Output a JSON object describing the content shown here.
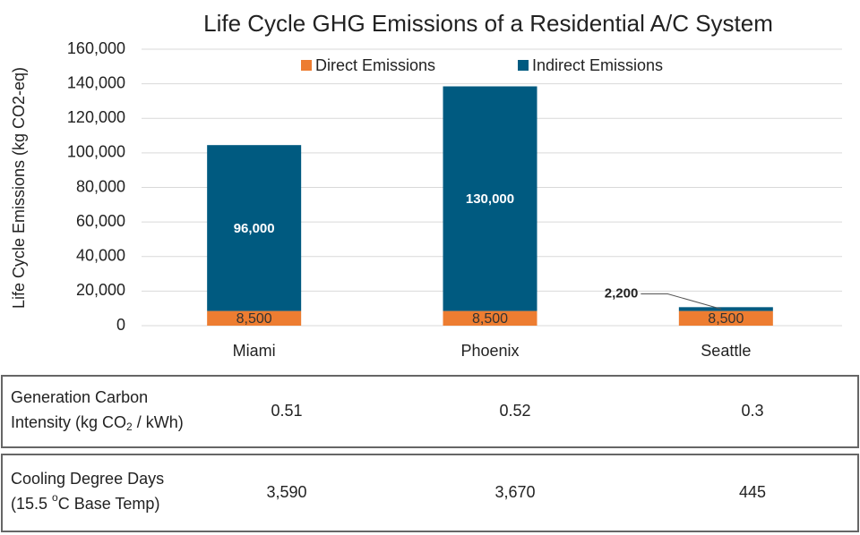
{
  "chart_data": {
    "type": "stacked_bar",
    "title": "Life Cycle GHG Emissions of a Residential A/C System",
    "ylabel": "Life Cycle Emissions  (kg CO2-eq)",
    "categories": [
      "Miami",
      "Phoenix",
      "Seattle"
    ],
    "series": [
      {
        "name": "Direct Emissions",
        "color": "#ed7d31",
        "values": [
          8500,
          8500,
          8500
        ],
        "value_labels": [
          "8,500",
          "8,500",
          "8,500"
        ]
      },
      {
        "name": "Indirect Emissions",
        "color": "#005a80",
        "values": [
          96000,
          130000,
          2200
        ],
        "value_labels": [
          "96,000",
          "130,000",
          "2,200"
        ]
      }
    ],
    "ylim": [
      0,
      160000
    ],
    "yticks": [
      0,
      {
        "value": 20000,
        "label": "20,000"
      },
      {
        "value": 40000,
        "label": "40,000"
      },
      {
        "value": 60000,
        "label": "60,000"
      },
      {
        "value": 80000,
        "label": "80,000"
      },
      {
        "value": 100000,
        "label": "100,000"
      },
      {
        "value": 120000,
        "label": "120,000"
      },
      {
        "value": 140000,
        "label": "140,000"
      },
      {
        "value": 160000,
        "label": "160,000"
      }
    ],
    "grid": true,
    "legend": "top"
  },
  "table": {
    "rows": [
      {
        "label": {
          "lines": [
            "Generation Carbon",
            "Intensity (kg CO"
          ],
          "sub": "2",
          "rest": " / kWh)"
        },
        "values": [
          "0.51",
          "0.52",
          "0.3"
        ]
      },
      {
        "label": {
          "lines": [
            "Cooling Degree Days",
            "(15.5 "
          ],
          "sup": "o",
          "rest": "C Base Temp)"
        },
        "values": [
          "3,590",
          "3,670",
          "445"
        ]
      }
    ]
  }
}
